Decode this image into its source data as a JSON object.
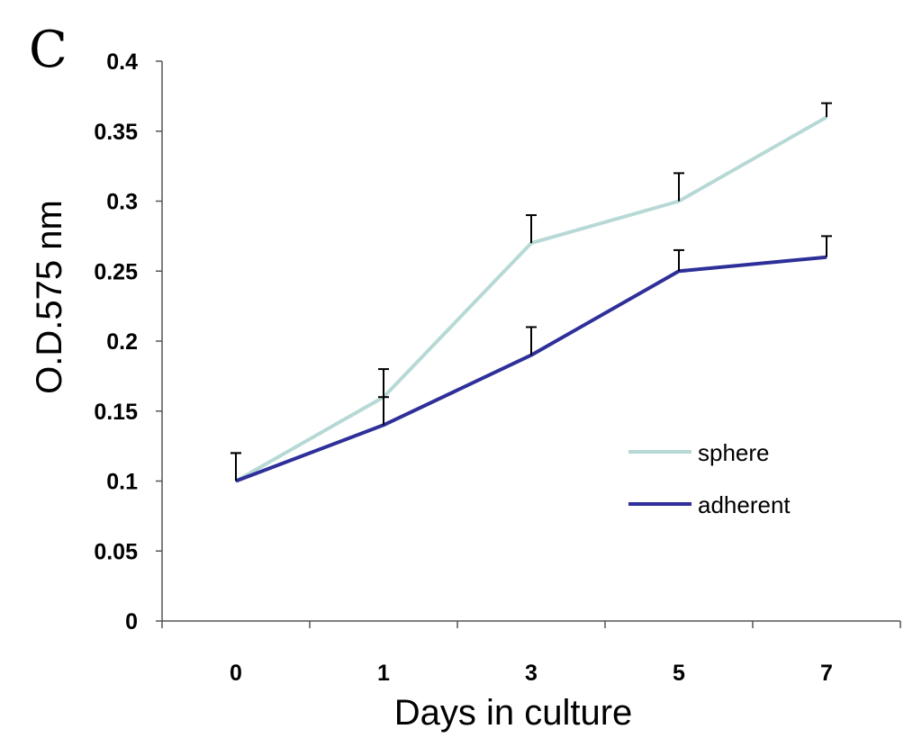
{
  "panel_label": "C",
  "colors": {
    "sphere": "#b7d9d6",
    "adherent": "#2e2f99",
    "axis": "#555555",
    "error": "#000000"
  },
  "chart_data": {
    "type": "line",
    "title": "",
    "xlabel": "Days in culture",
    "ylabel": "O.D.575 nm",
    "x": [
      "0",
      "1",
      "3",
      "5",
      "7"
    ],
    "ylim": [
      0,
      0.4
    ],
    "yticks": [
      "0",
      "0.05",
      "0.1",
      "0.15",
      "0.2",
      "0.25",
      "0.3",
      "0.35",
      "0.4"
    ],
    "grid": false,
    "legend_position": "right-middle",
    "series": [
      {
        "name": "sphere",
        "values": [
          0.1,
          0.16,
          0.27,
          0.3,
          0.36
        ],
        "error": [
          0.02,
          0.02,
          0.02,
          0.02,
          0.01
        ]
      },
      {
        "name": "adherent",
        "values": [
          0.1,
          0.14,
          0.19,
          0.25,
          0.26
        ],
        "error": [
          0.02,
          0.02,
          0.02,
          0.015,
          0.015
        ]
      }
    ]
  }
}
